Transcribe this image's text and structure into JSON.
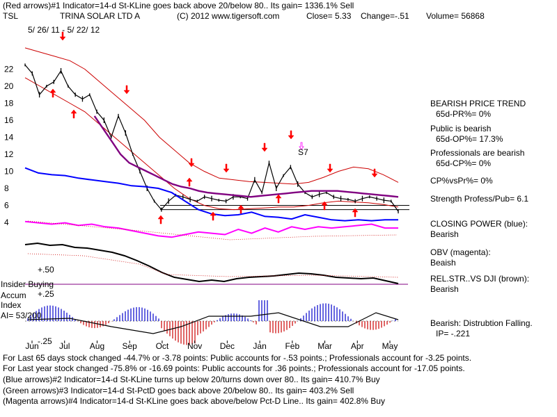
{
  "header": {
    "line1": "(Red arrows)#1 Indicator=14-d St-KLine goes back above 20/below 80.. Its gain= 1336.1% Sell",
    "symbol": "TSL",
    "company": "TRINA SOLAR LTD A",
    "copyright": "(C) 2012 www.tigersoft.com",
    "close": "Close=  5.33",
    "change": "Change=-.51",
    "volume": "Volume= 56868",
    "date_range": "5/ 26/ 11 - 5/ 22/ 12"
  },
  "side_panel": {
    "trend_title": "BEARISH PRICE TREND",
    "pr": "65d-PR%= 0%",
    "public_title": "Public is bearish",
    "op": "65d-OP%= 17.3%",
    "pro_title": "Professionals are bearish",
    "cp": "65d-CP%= 0%",
    "cpvspr": "CP%vsPr%=  0%",
    "strength": "Strength Profess/Pub= 6.1",
    "closing_power_title": "CLOSING POWER (blue):",
    "closing_power_value": "Bearish",
    "obv_title": "OBV (magenta):",
    "obv_value": "Beaish",
    "relstr_title": "REL.STR..VS DJI (brown):",
    "relstr_value": "Bearish",
    "accum_title": "Bearish: Distrubtion Falling.",
    "ip": "IP= -.221"
  },
  "insider": {
    "label": "Insider Buying",
    "accum": "Accum",
    "index": "Index",
    "ai": "AI= 53/200",
    "plus50": "+.50",
    "plus25": "+.25",
    "minus25": "-.25"
  },
  "footer": {
    "line1": "For Last 65 days stock changed -44.7% or -3.78 points:  Public accounts for -.53 points.;  Professionals account for -3.25 points.",
    "line2": "For Last year stock changed -75.8% or -16.69 points:  Public accounts for  .36 points.;  Professionals account for -17.05 points.",
    "line3": "(Blue arrows)#2 Indicator=14-d St-KLine turns up below 20/turns down over 80.. Its gain= 410.7% Buy",
    "line4": "(Green arrows)#3 Indicator=14-d St-PctD goes back above 20/below 80.. Its gain= 403.2% Sell",
    "line5": "(Magenta arrows)#4 Indicator=14-d St-KLine goes back above/below Pct-D Line.. Its gain= 402.8% Buy"
  },
  "colors": {
    "price": "#000000",
    "band": "#cc0000",
    "ma": "#800080",
    "closing_power": "#0000ff",
    "obv": "#ff00ff",
    "relstr": "#000000",
    "arrow": "#ff0000",
    "hist_red": "#cc0000",
    "hist_blue": "#0000cc"
  },
  "chart_data": {
    "type": "line",
    "title": "TRINA SOLAR LTD A (TSL)",
    "ylim": [
      4,
      24
    ],
    "price_ticks": [
      "22",
      "20",
      "18",
      "16",
      "14",
      "12",
      "10",
      "8",
      "6",
      "4"
    ],
    "months": [
      "Jun",
      "Jul",
      "Aug",
      "Sep",
      "Oct",
      "Nov",
      "Dec",
      "Jan",
      "Feb",
      "Mar",
      "Apr",
      "May"
    ],
    "annotation": "S7",
    "price_series": [
      22.5,
      21.5,
      19,
      20,
      20.5,
      21.8,
      20,
      19,
      18.5,
      19,
      17,
      16,
      14,
      16.5,
      14.5,
      12,
      10,
      8,
      6.5,
      5.5,
      6.5,
      7.2,
      7,
      6.7,
      6.5,
      7,
      6.8,
      6.6,
      6.5,
      7,
      7,
      6.8,
      9,
      7.5,
      11,
      8,
      9.5,
      10.5,
      8.5,
      7.5,
      7,
      7.3,
      7.5,
      7,
      6.8,
      6.7,
      6.5,
      6.8,
      7,
      6.8,
      6.6,
      6.5,
      5.3
    ],
    "ma_series": [
      null,
      null,
      null,
      null,
      null,
      null,
      null,
      null,
      16.5,
      15,
      13.5,
      12,
      11,
      10.5,
      10,
      9.5,
      9,
      8.5,
      8.2,
      8,
      7.7,
      7.5,
      7.4,
      7.3,
      7.2,
      7.1,
      7.0,
      7.1,
      7.2,
      7.3,
      7.4,
      7.5,
      7.6,
      7.7,
      7.7,
      7.7,
      7.7,
      7.6,
      7.5,
      7.4,
      7.3,
      7.2,
      7.1,
      7.0
    ],
    "upper_band": [
      24.5,
      24,
      23.5,
      23,
      22,
      20.5,
      19,
      17.5,
      16,
      14,
      12.5,
      11,
      10,
      9.2,
      9,
      8.8,
      8.7,
      8.6,
      8.5,
      8.7,
      9.3,
      10,
      10.5,
      10.3,
      9.6,
      8.7
    ],
    "lower_band": [
      21,
      20,
      19,
      18,
      17,
      15.5,
      14,
      12.5,
      11,
      9.5,
      8,
      6.8,
      6,
      5.6,
      5.5,
      5.6,
      5.7,
      5.8,
      5.8,
      6,
      6.3,
      6.5,
      6.4,
      6.3,
      6.1,
      5.8
    ],
    "support_level": 5.5,
    "resistance_level": 6,
    "closing_power": [
      10.4,
      9.8,
      9.6,
      9.5,
      9.2,
      9.0,
      8.8,
      8.6,
      8.3,
      8.2,
      8.0,
      7.5,
      6.5,
      5.5,
      5.0,
      4.8,
      4.9,
      5.2,
      4.7,
      4.6,
      4.4,
      4.9,
      4.6,
      4.3,
      4.2,
      4.3,
      4.2,
      4.3,
      4.3
    ],
    "obv": [
      4.2,
      4.1,
      4.0,
      4.1,
      3.9,
      4.0,
      3.8,
      3.7,
      3.5,
      3.3,
      3.1,
      3.0,
      3.2,
      3.4,
      3.3,
      3.2,
      3.6,
      3.3,
      3.7,
      3.4,
      3.8,
      3.6,
      3.8,
      3.7,
      3.8,
      3.9,
      4.0,
      3.7,
      3.7
    ]
  }
}
